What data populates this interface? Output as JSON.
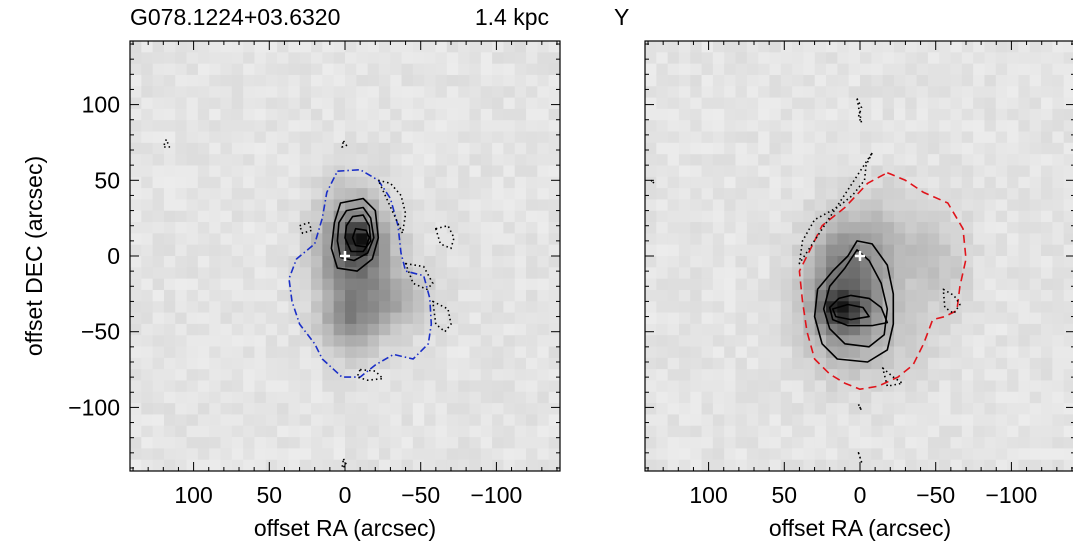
{
  "header": {
    "source_name": "G078.1224+03.6320",
    "distance": "1.4 kpc",
    "panel2_label": "Y"
  },
  "chart_data": [
    {
      "type": "heatmap",
      "panel": "left",
      "xlabel": "offset RA (arcsec)",
      "ylabel": "offset DEC (arcsec)",
      "xlim": [
        142,
        -142
      ],
      "ylim": [
        -142,
        142
      ],
      "x_ticks": [
        100,
        50,
        0,
        -50,
        -100
      ],
      "y_ticks": [
        100,
        50,
        0,
        -50,
        -100
      ],
      "x_tick_labels": [
        "100",
        "50",
        "0",
        "−50",
        "−100"
      ],
      "y_tick_labels": [
        "100",
        "50",
        "0",
        "−50",
        "−100"
      ],
      "colormap": "inverted-gray",
      "marker": {
        "x": 0,
        "y": 0,
        "symbol": "+",
        "color": "#ffffff"
      },
      "emission_blobs": [
        {
          "x": -5,
          "y": 5,
          "sx": 16,
          "sy": 26,
          "amp": 0.55
        },
        {
          "x": -9,
          "y": 11,
          "sx": 7,
          "sy": 8,
          "amp": 0.45
        },
        {
          "x": -3,
          "y": -45,
          "sx": 13,
          "sy": 14,
          "amp": 0.3
        },
        {
          "x": -38,
          "y": -30,
          "sx": 14,
          "sy": 12,
          "amp": 0.18
        },
        {
          "x": -20,
          "y": -20,
          "sx": 22,
          "sy": 30,
          "amp": 0.12
        }
      ],
      "contours": [
        {
          "style": "solid",
          "color": "#000000",
          "points": [
            [
              3,
              35
            ],
            [
              -12,
              38
            ],
            [
              -20,
              30
            ],
            [
              -22,
              12
            ],
            [
              -18,
              -2
            ],
            [
              -8,
              -10
            ],
            [
              5,
              -8
            ],
            [
              9,
              5
            ],
            [
              7,
              22
            ]
          ]
        },
        {
          "style": "solid",
          "color": "#000000",
          "points": [
            [
              -1,
              30
            ],
            [
              -12,
              32
            ],
            [
              -17,
              25
            ],
            [
              -19,
              12
            ],
            [
              -15,
              2
            ],
            [
              -6,
              -3
            ],
            [
              3,
              -1
            ],
            [
              5,
              10
            ],
            [
              4,
              22
            ]
          ]
        },
        {
          "style": "solid",
          "color": "#000000",
          "points": [
            [
              -5,
              26
            ],
            [
              -12,
              27
            ],
            [
              -16,
              20
            ],
            [
              -17,
              10
            ],
            [
              -12,
              3
            ],
            [
              -4,
              3
            ],
            [
              0,
              12
            ],
            [
              -1,
              20
            ]
          ]
        },
        {
          "style": "solid",
          "color": "#000000",
          "points": [
            [
              -7,
              18
            ],
            [
              -14,
              17
            ],
            [
              -16,
              12
            ],
            [
              -14,
              6
            ],
            [
              -7,
              7
            ],
            [
              -5,
              12
            ]
          ]
        },
        {
          "style": "dashdot",
          "color": "#1b2fc7",
          "points": [
            [
              5,
              56
            ],
            [
              -10,
              57
            ],
            [
              -22,
              50
            ],
            [
              -30,
              38
            ],
            [
              -35,
              20
            ],
            [
              -37,
              2
            ],
            [
              -40,
              -10
            ],
            [
              -52,
              -13
            ],
            [
              -56,
              -28
            ],
            [
              -57,
              -45
            ],
            [
              -55,
              -58
            ],
            [
              -45,
              -68
            ],
            [
              -32,
              -65
            ],
            [
              -20,
              -72
            ],
            [
              -10,
              -80
            ],
            [
              2,
              -80
            ],
            [
              15,
              -68
            ],
            [
              20,
              -58
            ],
            [
              30,
              -45
            ],
            [
              35,
              -30
            ],
            [
              37,
              -15
            ],
            [
              32,
              -2
            ],
            [
              20,
              8
            ],
            [
              15,
              25
            ],
            [
              12,
              42
            ]
          ]
        },
        {
          "style": "dotted",
          "color": "#000000",
          "points": [
            [
              -22,
              50
            ],
            [
              -30,
              48
            ],
            [
              -37,
              40
            ],
            [
              -40,
              28
            ],
            [
              -38,
              15
            ]
          ]
        },
        {
          "style": "dotted",
          "color": "#000000",
          "points": [
            [
              -60,
              18
            ],
            [
              -68,
              20
            ],
            [
              -72,
              12
            ],
            [
              -70,
              5
            ],
            [
              -63,
              8
            ]
          ]
        },
        {
          "style": "dotted",
          "color": "#000000",
          "points": [
            [
              -40,
              -5
            ],
            [
              -52,
              -7
            ],
            [
              -58,
              -18
            ],
            [
              -54,
              -22
            ],
            [
              -45,
              -18
            ]
          ]
        },
        {
          "style": "dotted",
          "color": "#000000",
          "points": [
            [
              -58,
              -30
            ],
            [
              -68,
              -35
            ],
            [
              -70,
              -45
            ],
            [
              -66,
              -50
            ],
            [
              -60,
              -45
            ]
          ]
        },
        {
          "style": "dotted",
          "color": "#000000",
          "points": [
            [
              -10,
              -75
            ],
            [
              -20,
              -76
            ],
            [
              -25,
              -81
            ],
            [
              -15,
              -82
            ],
            [
              -8,
              -80
            ]
          ]
        },
        {
          "style": "dotted",
          "color": "#000000",
          "points": [
            [
              30,
              20
            ],
            [
              24,
              22
            ],
            [
              22,
              17
            ],
            [
              28,
              15
            ]
          ]
        },
        {
          "style": "dotted",
          "color": "#000000",
          "points": [
            [
              118,
              77
            ],
            [
              120,
              72
            ],
            [
              116,
              72
            ]
          ]
        },
        {
          "style": "dotted",
          "color": "#000000",
          "points": [
            [
              1,
              76
            ],
            [
              -1,
              73
            ],
            [
              2,
              72
            ]
          ]
        },
        {
          "style": "dotted",
          "color": "#000000",
          "points": [
            [
              1,
              -134
            ],
            [
              -1,
              -138
            ],
            [
              2,
              -140
            ]
          ]
        }
      ]
    },
    {
      "type": "heatmap",
      "panel": "right",
      "xlabel": "offset RA (arcsec)",
      "ylabel": "",
      "xlim": [
        142,
        -142
      ],
      "ylim": [
        -142,
        142
      ],
      "x_ticks": [
        100,
        50,
        0,
        -50,
        -100
      ],
      "y_ticks": [
        100,
        50,
        0,
        -50,
        -100
      ],
      "x_tick_labels": [
        "100",
        "50",
        "0",
        "−50",
        "−100"
      ],
      "colormap": "inverted-gray",
      "marker": {
        "x": 0,
        "y": 0,
        "symbol": "+",
        "color": "#ffffff"
      },
      "emission_blobs": [
        {
          "x": 10,
          "y": -25,
          "sx": 18,
          "sy": 30,
          "amp": 0.6
        },
        {
          "x": 14,
          "y": -36,
          "sx": 9,
          "sy": 7,
          "amp": 0.45
        },
        {
          "x": -20,
          "y": 10,
          "sx": 22,
          "sy": 25,
          "amp": 0.15
        },
        {
          "x": -55,
          "y": -5,
          "sx": 14,
          "sy": 20,
          "amp": 0.12
        },
        {
          "x": -25,
          "y": -50,
          "sx": 20,
          "sy": 22,
          "amp": 0.1
        }
      ],
      "contours": [
        {
          "style": "solid",
          "color": "#000000",
          "points": [
            [
              2,
              10
            ],
            [
              -8,
              8
            ],
            [
              -18,
              -6
            ],
            [
              -22,
              -25
            ],
            [
              -22,
              -45
            ],
            [
              -18,
              -62
            ],
            [
              -5,
              -70
            ],
            [
              15,
              -68
            ],
            [
              25,
              -58
            ],
            [
              30,
              -40
            ],
            [
              28,
              -22
            ],
            [
              18,
              -10
            ],
            [
              8,
              0
            ]
          ]
        },
        {
          "style": "solid",
          "color": "#000000",
          "points": [
            [
              2,
              4
            ],
            [
              -6,
              -3
            ],
            [
              -14,
              -18
            ],
            [
              -18,
              -35
            ],
            [
              -16,
              -52
            ],
            [
              -6,
              -60
            ],
            [
              10,
              -58
            ],
            [
              20,
              -48
            ],
            [
              24,
              -35
            ],
            [
              20,
              -20
            ],
            [
              10,
              -8
            ]
          ]
        },
        {
          "style": "solid",
          "color": "#000000",
          "points": [
            [
              6,
              -26
            ],
            [
              -6,
              -28
            ],
            [
              -14,
              -34
            ],
            [
              -18,
              -44
            ],
            [
              -8,
              -46
            ],
            [
              8,
              -46
            ],
            [
              18,
              -42
            ],
            [
              20,
              -34
            ],
            [
              14,
              -28
            ]
          ]
        },
        {
          "style": "solid",
          "color": "#000000",
          "points": [
            [
              8,
              -32
            ],
            [
              -2,
              -34
            ],
            [
              -6,
              -40
            ],
            [
              6,
              -42
            ],
            [
              16,
              -40
            ],
            [
              18,
              -35
            ]
          ]
        },
        {
          "style": "dashed",
          "color": "#e0141b",
          "points": [
            [
              -18,
              55
            ],
            [
              -30,
              50
            ],
            [
              -42,
              42
            ],
            [
              -58,
              35
            ],
            [
              -68,
              18
            ],
            [
              -70,
              -2
            ],
            [
              -66,
              -20
            ],
            [
              -64,
              -36
            ],
            [
              -56,
              -40
            ],
            [
              -48,
              -42
            ],
            [
              -42,
              -58
            ],
            [
              -35,
              -72
            ],
            [
              -25,
              -80
            ],
            [
              -12,
              -86
            ],
            [
              0,
              -88
            ],
            [
              10,
              -84
            ],
            [
              20,
              -78
            ],
            [
              30,
              -68
            ],
            [
              35,
              -50
            ],
            [
              38,
              -30
            ],
            [
              40,
              -10
            ],
            [
              34,
              2
            ],
            [
              25,
              20
            ],
            [
              10,
              32
            ],
            [
              -5,
              48
            ]
          ]
        },
        {
          "style": "dotted",
          "color": "#000000",
          "points": [
            [
              -8,
              68
            ],
            [
              -4,
              60
            ],
            [
              -3,
              50
            ],
            [
              5,
              40
            ],
            [
              15,
              32
            ],
            [
              30,
              24
            ],
            [
              38,
              10
            ],
            [
              40,
              -5
            ]
          ]
        },
        {
          "style": "dotted",
          "color": "#000000",
          "points": [
            [
              -55,
              -22
            ],
            [
              -62,
              -26
            ],
            [
              -66,
              -32
            ],
            [
              -62,
              -38
            ],
            [
              -56,
              -34
            ]
          ]
        },
        {
          "style": "dotted",
          "color": "#000000",
          "points": [
            [
              -15,
              -74
            ],
            [
              -22,
              -80
            ],
            [
              -28,
              -84
            ],
            [
              -18,
              -86
            ]
          ]
        },
        {
          "style": "dotted",
          "color": "#000000",
          "points": [
            [
              2,
              104
            ],
            [
              -1,
              98
            ],
            [
              1,
              92
            ],
            [
              -1,
              88
            ]
          ]
        },
        {
          "style": "dotted",
          "color": "#000000",
          "points": [
            [
              138,
              50
            ],
            [
              136,
              48
            ]
          ]
        },
        {
          "style": "dotted",
          "color": "#000000",
          "points": [
            [
              1,
              -98
            ],
            [
              -1,
              -102
            ]
          ]
        },
        {
          "style": "dotted",
          "color": "#000000",
          "points": [
            [
              1,
              -130
            ],
            [
              -1,
              -136
            ]
          ]
        }
      ]
    }
  ]
}
